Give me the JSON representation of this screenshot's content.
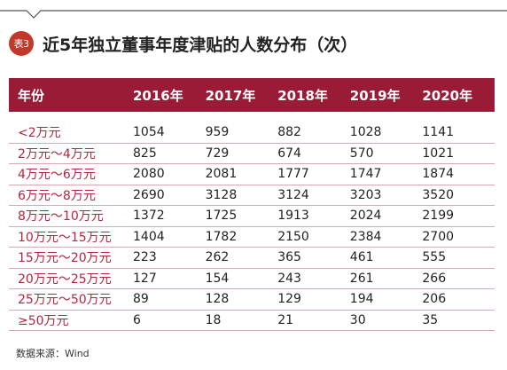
{
  "badge": "表3",
  "title": "近5年独立董事年度津贴的人数分布（次）",
  "table": {
    "headers": [
      "年份",
      "2016年",
      "2017年",
      "2018年",
      "2019年",
      "2020年"
    ],
    "rows": [
      [
        "<2万元",
        "1054",
        "959",
        "882",
        "1028",
        "1141"
      ],
      [
        "2万元～4万元",
        "825",
        "729",
        "674",
        "570",
        "1021"
      ],
      [
        "4万元～6万元",
        "2080",
        "2081",
        "1777",
        "1747",
        "1874"
      ],
      [
        "6万元～8万元",
        "2690",
        "3128",
        "3124",
        "3203",
        "3520"
      ],
      [
        "8万元～10万元",
        "1372",
        "1725",
        "1913",
        "2024",
        "2199"
      ],
      [
        "10万元～15万元",
        "1404",
        "1782",
        "2150",
        "2384",
        "2700"
      ],
      [
        "15万元～20万元",
        "223",
        "262",
        "365",
        "461",
        "555"
      ],
      [
        "20万元～25万元",
        "127",
        "154",
        "243",
        "261",
        "266"
      ],
      [
        "25万元～50万元",
        "89",
        "128",
        "129",
        "194",
        "206"
      ],
      [
        "≥50万元",
        "6",
        "18",
        "21",
        "30",
        "35"
      ]
    ]
  },
  "source": "数据来源：Wind",
  "colors": {
    "header_bg": "#9a1b35",
    "badge_bg": "#c0392b",
    "row_label": "#b3263f",
    "row_divider": "#d9a9b3"
  }
}
